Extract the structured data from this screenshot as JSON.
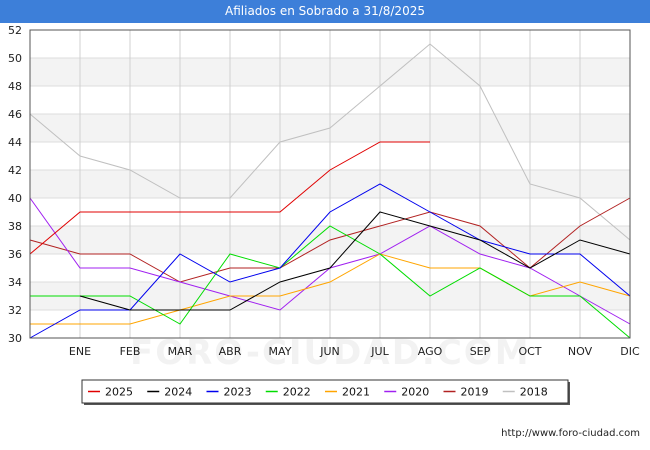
{
  "header": {
    "title": "Afiliados en Sobrado a 31/8/2025"
  },
  "footer": {
    "url": "http://www.foro-ciudad.com"
  },
  "watermark": {
    "text": "FORO-CIUDAD.COM"
  },
  "chart_data": {
    "type": "line",
    "title": "Afiliados en Sobrado a 31/8/2025",
    "xlabel": "",
    "ylabel": "",
    "ylim": [
      30,
      52
    ],
    "yticks": [
      30,
      32,
      34,
      36,
      38,
      40,
      42,
      44,
      46,
      48,
      50,
      52
    ],
    "categories": [
      "",
      "ENE",
      "FEB",
      "MAR",
      "ABR",
      "MAY",
      "JUN",
      "JUL",
      "AGO",
      "SEP",
      "OCT",
      "NOV",
      "DIC"
    ],
    "grid": true,
    "legend_position": "bottom",
    "series": [
      {
        "name": "2025",
        "color": "#e00000",
        "values": [
          36,
          39,
          39,
          39,
          39,
          39,
          42,
          44,
          44,
          null,
          null,
          null,
          null
        ]
      },
      {
        "name": "2024",
        "color": "#000000",
        "values": [
          null,
          33,
          32,
          32,
          32,
          34,
          35,
          39,
          38,
          37,
          35,
          37,
          36
        ]
      },
      {
        "name": "2023",
        "color": "#0000ee",
        "values": [
          30,
          32,
          32,
          36,
          34,
          35,
          39,
          41,
          39,
          37,
          36,
          36,
          33
        ]
      },
      {
        "name": "2022",
        "color": "#00dd00",
        "values": [
          33,
          33,
          33,
          31,
          36,
          35,
          38,
          36,
          33,
          35,
          33,
          33,
          30
        ]
      },
      {
        "name": "2021",
        "color": "#ffa500",
        "values": [
          31,
          31,
          31,
          32,
          33,
          33,
          34,
          36,
          35,
          35,
          33,
          34,
          33
        ]
      },
      {
        "name": "2020",
        "color": "#a020f0",
        "values": [
          40,
          35,
          35,
          34,
          33,
          32,
          35,
          36,
          38,
          36,
          35,
          33,
          31
        ]
      },
      {
        "name": "2019",
        "color": "#b22222",
        "values": [
          37,
          36,
          36,
          34,
          35,
          35,
          37,
          38,
          39,
          38,
          35,
          38,
          40
        ]
      },
      {
        "name": "2018",
        "color": "#c0c0c0",
        "values": [
          46,
          43,
          42,
          40,
          40,
          44,
          45,
          48,
          51,
          48,
          41,
          40,
          37
        ]
      }
    ]
  }
}
